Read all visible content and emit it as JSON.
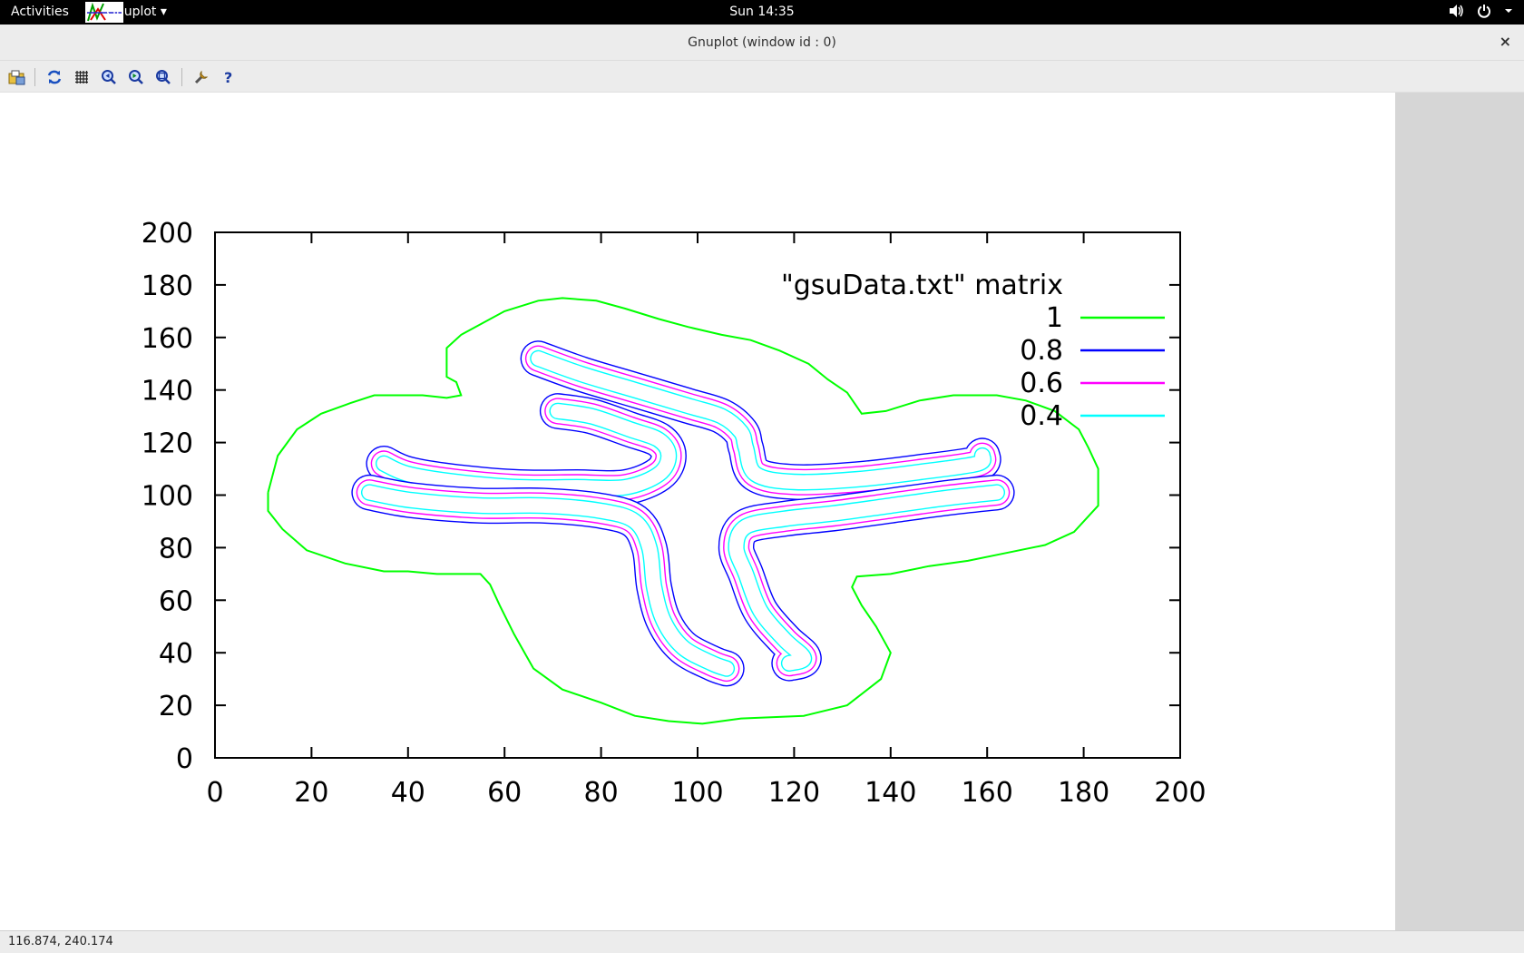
{
  "topbar": {
    "activities_label": "Activities",
    "app_menu_label": "Gnuplot ▾",
    "clock": "Sun 14:35",
    "icons": [
      "speaker-icon",
      "power-icon",
      "chevron-down-icon"
    ]
  },
  "window": {
    "title": "Gnuplot (window id : 0)",
    "close_label": "×"
  },
  "toolbar": {
    "buttons": [
      "export-icon",
      "replot-icon",
      "grid-icon",
      "zoom-previous-icon",
      "zoom-next-icon",
      "autoscale-icon",
      "settings-icon",
      "help-icon"
    ]
  },
  "statusbar": {
    "coords": "116.874,  240.174"
  },
  "chart_data": {
    "type": "contour",
    "xlim": [
      0,
      200
    ],
    "ylim": [
      0,
      200
    ],
    "x_ticks": [
      "0",
      "20",
      "40",
      "60",
      "80",
      "100",
      "120",
      "140",
      "160",
      "180",
      "200"
    ],
    "y_ticks": [
      "0",
      "20",
      "40",
      "60",
      "80",
      "100",
      "120",
      "140",
      "160",
      "180",
      "200"
    ],
    "legend": {
      "title": "\"gsuData.txt\" matrix",
      "placement": "top-right",
      "entries": [
        {
          "label": "1",
          "color": "#00ff00"
        },
        {
          "label": "0.8",
          "color": "#0000ff"
        },
        {
          "label": "0.6",
          "color": "#ff00ff"
        },
        {
          "label": "0.4",
          "color": "#00ffff"
        }
      ]
    },
    "outer_contour": {
      "level": "1",
      "color": "#00ff00",
      "points": [
        [
          11,
          101
        ],
        [
          13,
          115
        ],
        [
          17,
          125
        ],
        [
          22,
          131
        ],
        [
          28,
          135
        ],
        [
          33,
          138
        ],
        [
          43,
          138
        ],
        [
          48,
          137
        ],
        [
          51,
          138
        ],
        [
          50,
          143
        ],
        [
          48,
          145
        ],
        [
          48,
          156
        ],
        [
          51,
          161
        ],
        [
          60,
          170
        ],
        [
          67,
          174
        ],
        [
          72,
          175
        ],
        [
          79,
          174
        ],
        [
          85,
          171
        ],
        [
          92,
          167
        ],
        [
          98,
          164
        ],
        [
          105,
          161
        ],
        [
          111,
          159
        ],
        [
          117,
          155
        ],
        [
          123,
          150
        ],
        [
          127,
          144
        ],
        [
          131,
          139
        ],
        [
          134,
          131
        ],
        [
          139,
          132
        ],
        [
          146,
          136
        ],
        [
          153,
          138
        ],
        [
          158,
          138
        ],
        [
          162,
          138
        ],
        [
          168,
          136
        ],
        [
          174,
          132
        ],
        [
          179,
          125
        ],
        [
          181,
          118
        ],
        [
          183,
          110
        ],
        [
          183,
          96
        ],
        [
          178,
          86
        ],
        [
          172,
          81
        ],
        [
          164,
          78
        ],
        [
          156,
          75
        ],
        [
          148,
          73
        ],
        [
          140,
          70
        ],
        [
          133,
          69
        ],
        [
          132,
          65
        ],
        [
          134,
          58
        ],
        [
          137,
          50
        ],
        [
          140,
          40
        ],
        [
          138,
          30
        ],
        [
          131,
          20
        ],
        [
          122,
          16
        ],
        [
          109,
          15
        ],
        [
          101,
          13
        ],
        [
          94,
          14
        ],
        [
          87,
          16
        ],
        [
          80,
          21
        ],
        [
          72,
          26
        ],
        [
          66,
          34
        ],
        [
          62,
          47
        ],
        [
          59,
          58
        ],
        [
          57,
          66
        ],
        [
          55,
          70
        ],
        [
          46,
          70
        ],
        [
          40,
          71
        ],
        [
          35,
          71
        ],
        [
          27,
          74
        ],
        [
          19,
          79
        ],
        [
          14,
          87
        ],
        [
          11,
          94
        ],
        [
          11,
          101
        ]
      ]
    },
    "arms": [
      {
        "name": "upper-diagonal-arm",
        "points": [
          [
            67,
            152
          ],
          [
            76,
            146
          ],
          [
            87,
            140
          ],
          [
            98,
            134
          ],
          [
            105,
            130
          ],
          [
            109,
            124
          ],
          [
            110,
            118
          ],
          [
            112,
            108
          ],
          [
            120,
            105
          ],
          [
            133,
            106
          ],
          [
            147,
            109
          ],
          [
            158,
            112
          ],
          [
            159,
            115
          ]
        ]
      },
      {
        "name": "middle-curl-arm",
        "points": [
          [
            71,
            132
          ],
          [
            78,
            130
          ],
          [
            86,
            125
          ],
          [
            92,
            121
          ],
          [
            94,
            115
          ],
          [
            92,
            108
          ],
          [
            85,
            103
          ],
          [
            75,
            103
          ],
          [
            63,
            103
          ],
          [
            50,
            105
          ],
          [
            40,
            108
          ],
          [
            35,
            112
          ]
        ]
      },
      {
        "name": "left-lower-arm",
        "points": [
          [
            32,
            101
          ],
          [
            41,
            98
          ],
          [
            55,
            96
          ],
          [
            68,
            96
          ],
          [
            80,
            94
          ],
          [
            87,
            90
          ],
          [
            90,
            80
          ],
          [
            91,
            65
          ],
          [
            93,
            52
          ],
          [
            97,
            42
          ],
          [
            103,
            36
          ],
          [
            106,
            34
          ]
        ]
      },
      {
        "name": "right-lower-arm",
        "points": [
          [
            162,
            101
          ],
          [
            152,
            99
          ],
          [
            140,
            96
          ],
          [
            128,
            93
          ],
          [
            118,
            91
          ],
          [
            110,
            88
          ],
          [
            108,
            80
          ],
          [
            110,
            70
          ],
          [
            113,
            56
          ],
          [
            118,
            45
          ],
          [
            122,
            38
          ],
          [
            119,
            36
          ]
        ]
      }
    ],
    "level_offsets": [
      {
        "label": "0.8",
        "color": "#0000ff",
        "offset": 3.5
      },
      {
        "label": "0.6",
        "color": "#ff00ff",
        "offset": 2.5
      },
      {
        "label": "0.4",
        "color": "#00ffff",
        "offset": 1.5
      }
    ]
  }
}
